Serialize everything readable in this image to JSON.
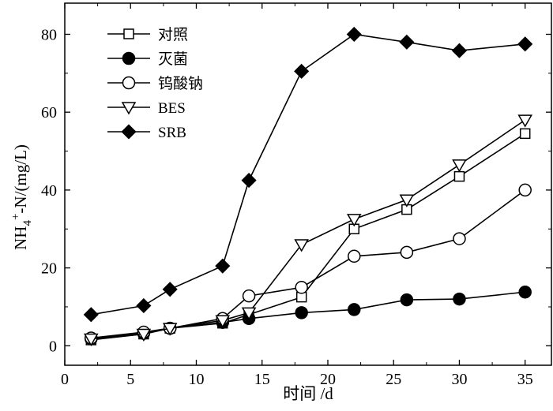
{
  "chart_data": {
    "type": "line",
    "title": "",
    "xlabel": "时间 /d",
    "ylabel": "NH4+-N/(mg/L)",
    "ylabel_parts": {
      "main": "NH",
      "sub": "4",
      "sup": "+",
      "rest": "-N/(mg/L)"
    },
    "xlim": [
      0,
      37
    ],
    "ylim": [
      -5,
      88
    ],
    "xticks": [
      0,
      5,
      10,
      15,
      20,
      25,
      30,
      35
    ],
    "yticks": [
      0,
      20,
      40,
      60,
      80
    ],
    "grid": false,
    "legend_position": "top-left",
    "series": [
      {
        "name": "对照",
        "marker": "open-square",
        "x": [
          2,
          6,
          8,
          12,
          14,
          18,
          22,
          26,
          30,
          35
        ],
        "y": [
          1.5,
          3.0,
          4.5,
          5.8,
          8.0,
          12.5,
          30.0,
          35.0,
          43.5,
          54.5
        ]
      },
      {
        "name": "灭菌",
        "marker": "filled-circle",
        "x": [
          2,
          6,
          8,
          12,
          14,
          18,
          22,
          26,
          30,
          35
        ],
        "y": [
          1.8,
          3.2,
          4.5,
          6.0,
          7.0,
          8.5,
          9.3,
          11.8,
          12.0,
          13.8
        ]
      },
      {
        "name": "钨酸钠",
        "marker": "open-circle",
        "x": [
          2,
          6,
          8,
          12,
          14,
          18,
          22,
          26,
          30,
          35
        ],
        "y": [
          2.0,
          3.5,
          4.5,
          7.0,
          12.8,
          15.0,
          23.0,
          24.0,
          27.5,
          40.0
        ]
      },
      {
        "name": "BES",
        "marker": "open-triangle-down",
        "x": [
          2,
          6,
          8,
          12,
          14,
          18,
          22,
          26,
          30,
          35
        ],
        "y": [
          1.8,
          3.0,
          4.5,
          6.5,
          8.5,
          26.0,
          32.5,
          37.5,
          46.5,
          58.0
        ]
      },
      {
        "name": "SRB",
        "marker": "filled-diamond",
        "x": [
          2,
          6,
          8,
          12,
          14,
          18,
          22,
          26,
          30,
          35
        ],
        "y": [
          8.0,
          10.3,
          14.5,
          20.5,
          42.5,
          70.5,
          80.0,
          78.0,
          75.8,
          77.5
        ]
      }
    ]
  }
}
